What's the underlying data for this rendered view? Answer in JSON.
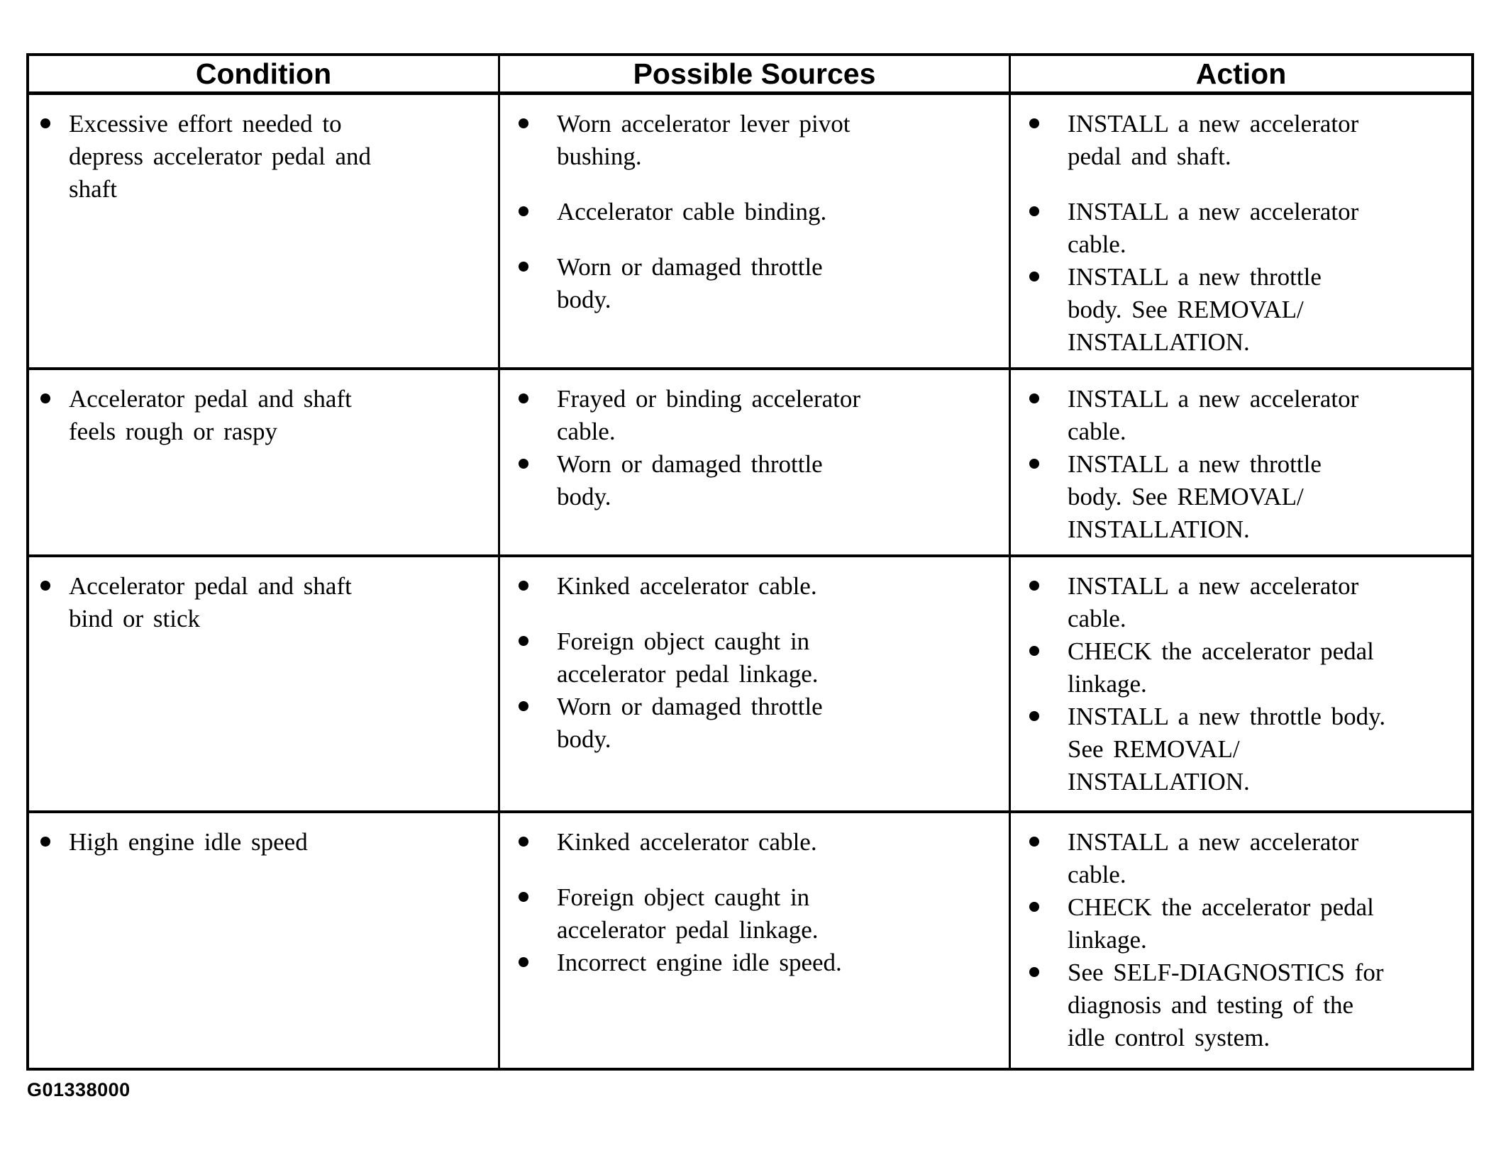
{
  "colors": {
    "ink": "#000000",
    "paper": "#ffffff"
  },
  "footer": {
    "code": "G01338000"
  },
  "table": {
    "headers": [
      "Condition",
      "Possible Sources",
      "Action"
    ],
    "rows": [
      {
        "condition": [
          {
            "text": "Excessive effort needed to\ndepress accelerator pedal and\nshaft"
          }
        ],
        "sources": [
          {
            "text": "Worn accelerator lever pivot\nbushing."
          },
          {
            "text": "Accelerator cable binding.",
            "gap_before": true
          },
          {
            "text": "Worn or damaged throttle\nbody.",
            "gap_before": true
          }
        ],
        "actions": [
          {
            "text": "INSTALL a new accelerator\npedal and shaft."
          },
          {
            "text": "INSTALL a new accelerator\ncable.",
            "gap_before": true
          },
          {
            "text": "INSTALL a new throttle\nbody. See REMOVAL/\nINSTALLATION."
          }
        ]
      },
      {
        "condition": [
          {
            "text": "Accelerator pedal and shaft\nfeels rough or raspy"
          }
        ],
        "sources": [
          {
            "text": "Frayed or binding accelerator\ncable."
          },
          {
            "text": "Worn or damaged throttle\nbody."
          }
        ],
        "actions": [
          {
            "text": "INSTALL a new accelerator\ncable."
          },
          {
            "text": "INSTALL a new throttle\nbody. See REMOVAL/\nINSTALLATION."
          }
        ]
      },
      {
        "condition": [
          {
            "text": "Accelerator pedal and shaft\nbind or stick"
          }
        ],
        "sources": [
          {
            "text": "Kinked accelerator cable."
          },
          {
            "text": "Foreign object caught in\naccelerator pedal linkage.",
            "gap_before": true
          },
          {
            "text": "Worn or damaged throttle\nbody."
          }
        ],
        "actions": [
          {
            "text": "INSTALL a new accelerator\ncable."
          },
          {
            "text": "CHECK the accelerator pedal\nlinkage."
          },
          {
            "text": "INSTALL a new throttle body.\nSee REMOVAL/\nINSTALLATION."
          }
        ]
      },
      {
        "condition": [
          {
            "text": "High engine idle speed"
          }
        ],
        "sources": [
          {
            "text": "Kinked accelerator cable."
          },
          {
            "text": "Foreign object caught in\naccelerator pedal linkage.",
            "gap_before": true
          },
          {
            "text": "Incorrect engine idle speed."
          }
        ],
        "actions": [
          {
            "text": "INSTALL a new accelerator\ncable."
          },
          {
            "text": "CHECK the accelerator pedal\nlinkage."
          },
          {
            "text": "See SELF-DIAGNOSTICS for\ndiagnosis and testing of the\nidle control system."
          }
        ]
      }
    ]
  }
}
